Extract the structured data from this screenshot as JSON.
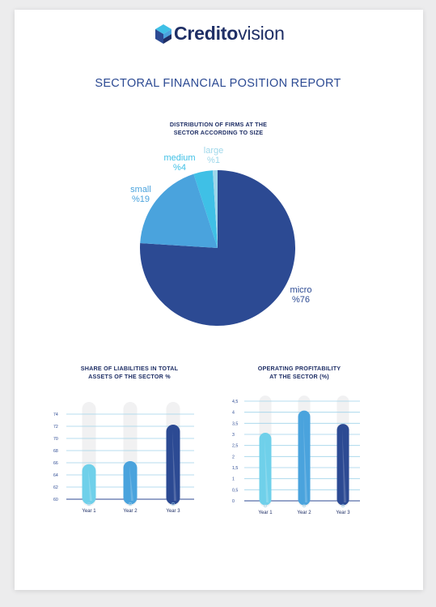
{
  "brand": {
    "name_bold": "Credito",
    "name_regular": "vision"
  },
  "report_title": "SECTORAL FINANCIAL POSITION REPORT",
  "colors": {
    "dark_blue": "#2c4a93",
    "mid_blue": "#4aa3dd",
    "light_blue": "#3fc0e6",
    "pale_blue": "#9ed7ea",
    "track_grey": "#f1f1f2",
    "grid_line": "#9fd3ea"
  },
  "chart_data": [
    {
      "type": "pie",
      "title": "DISTRIBUTION OF FIRMS AT THE SECTOR ACCORDING TO SIZE",
      "title_lines": [
        "DISTRIBUTION OF FIRMS AT THE",
        "SECTOR ACCORDING TO SIZE"
      ],
      "slices": [
        {
          "name": "micro",
          "value_label": "%76",
          "value": 76,
          "color": "#2c4a93"
        },
        {
          "name": "small",
          "value_label": "%19",
          "value": 19,
          "color": "#4aa3dd"
        },
        {
          "name": "medium",
          "value_label": "%4",
          "value": 4,
          "color": "#3fc0e6"
        },
        {
          "name": "large",
          "value_label": "%1",
          "value": 1,
          "color": "#9ed7ea"
        }
      ]
    },
    {
      "type": "bar",
      "title": "SHARE OF LIABILITIES IN TOTAL ASSETS OF THE SECTOR %",
      "title_lines": [
        "SHARE OF LIABILITIES IN TOTAL",
        "ASSETS OF THE SECTOR %"
      ],
      "categories": [
        "Year 1",
        "Year 2",
        "Year 3"
      ],
      "values": [
        65.5,
        66,
        72
      ],
      "colors": [
        "#6fd0ea",
        "#4aa3dd",
        "#2c4a93"
      ],
      "ylim": [
        60,
        74
      ],
      "track_max": 76,
      "yticks": [
        "60",
        "62",
        "64",
        "66",
        "68",
        "70",
        "72",
        "74"
      ],
      "ytick_values": [
        60,
        62,
        64,
        66,
        68,
        70,
        72,
        74
      ]
    },
    {
      "type": "bar",
      "title": "OPERATING PROFITABILITY AT THE SECTOR (%)",
      "title_lines": [
        "OPERATING PROFITABILITY",
        "AT THE SECTOR (%)"
      ],
      "categories": [
        "Year 1",
        "Year 2",
        "Year 3"
      ],
      "values": [
        3,
        4,
        3.4
      ],
      "colors": [
        "#6fd0ea",
        "#4aa3dd",
        "#2c4a93"
      ],
      "ylim": [
        0,
        4.5
      ],
      "track_max": 4.75,
      "yticks": [
        "0",
        "0,5",
        "1",
        "1,5",
        "2",
        "2,5",
        "3",
        "3,5",
        "4",
        "4,5"
      ],
      "ytick_values": [
        0,
        0.5,
        1,
        1.5,
        2,
        2.5,
        3,
        3.5,
        4,
        4.5
      ]
    }
  ]
}
